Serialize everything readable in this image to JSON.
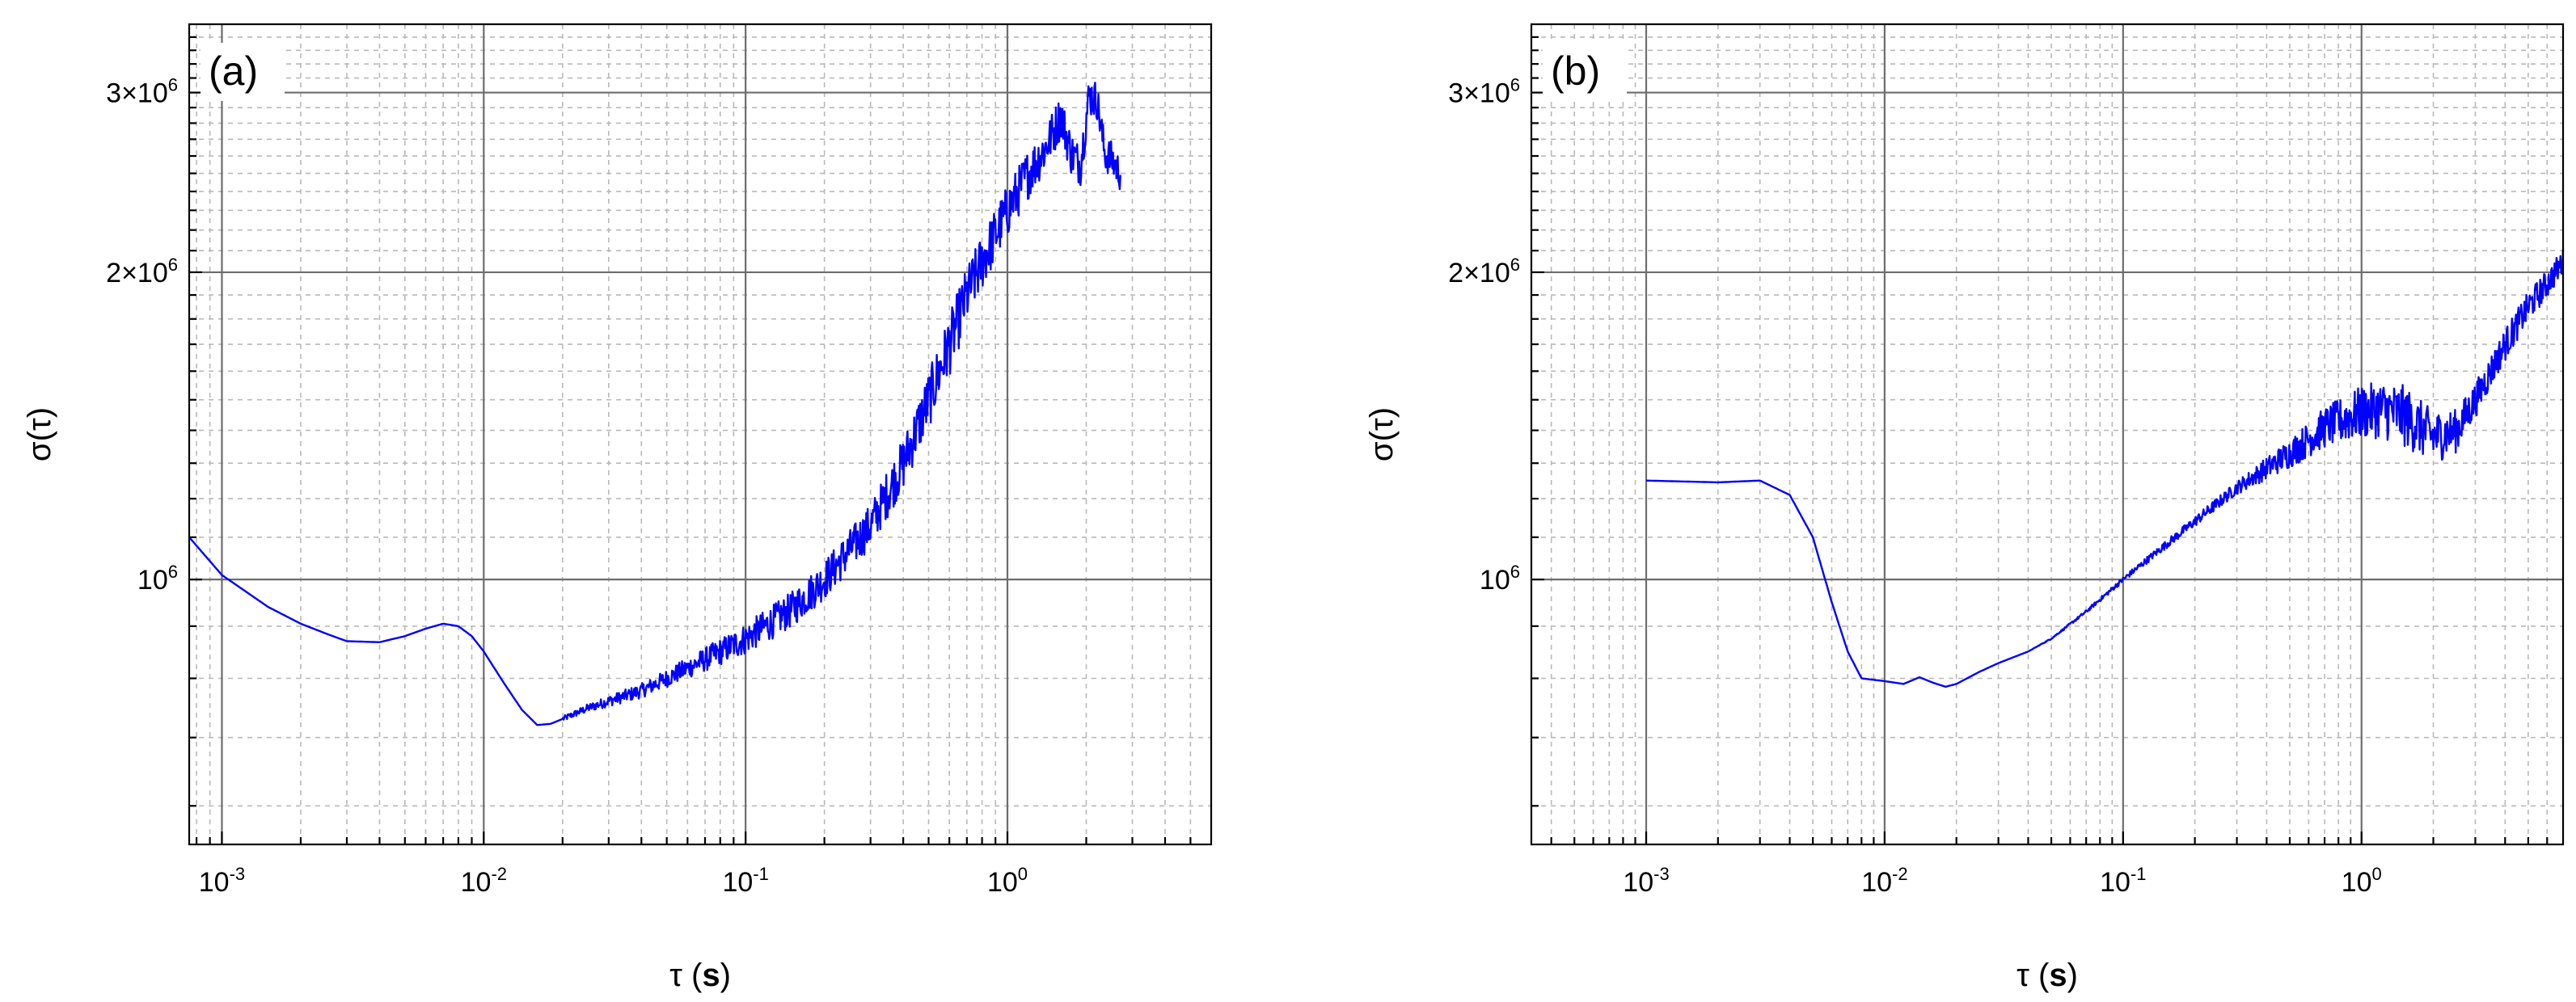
{
  "chart_data": [
    {
      "type": "line",
      "panel_label": "(a)",
      "xlabel_symbol": "τ",
      "xlabel_unit": "s",
      "ylabel": "σ(τ)",
      "x_scale": "log",
      "y_scale": "log",
      "xlim": [
        0.00075,
        6
      ],
      "ylim": [
        550000,
        3500000
      ],
      "x_ticks": [
        {
          "value": 0.001,
          "base": "10",
          "exp": "-3"
        },
        {
          "value": 0.01,
          "base": "10",
          "exp": "-2"
        },
        {
          "value": 0.1,
          "base": "10",
          "exp": "-1"
        },
        {
          "value": 1,
          "base": "10",
          "exp": "0"
        }
      ],
      "y_ticks": [
        {
          "value": 1000000,
          "base": "10",
          "exp": "6"
        },
        {
          "value": 2000000,
          "base": "2×10",
          "exp": "6"
        },
        {
          "value": 3000000,
          "base": "3×10",
          "exp": "6"
        }
      ],
      "grid": true,
      "series": [
        {
          "color": "#0000ff",
          "noise": [
            [
              0.02,
              0.006
            ],
            [
              0.05,
              0.02
            ],
            [
              0.1,
              0.035
            ],
            [
              0.3,
              0.05
            ],
            [
              0.6,
              0.07
            ],
            [
              1.0,
              0.06
            ],
            [
              2.8,
              0.04
            ]
          ],
          "points": [
            [
              0.00075,
              1100000
            ],
            [
              0.001,
              1010000
            ],
            [
              0.0015,
              940000
            ],
            [
              0.002,
              905000
            ],
            [
              0.0025,
              885000
            ],
            [
              0.003,
              870000
            ],
            [
              0.004,
              868000
            ],
            [
              0.005,
              880000
            ],
            [
              0.006,
              895000
            ],
            [
              0.007,
              905000
            ],
            [
              0.008,
              900000
            ],
            [
              0.009,
              880000
            ],
            [
              0.01,
              850000
            ],
            [
              0.012,
              790000
            ],
            [
              0.014,
              745000
            ],
            [
              0.016,
              720000
            ],
            [
              0.018,
              722000
            ],
            [
              0.02,
              730000
            ],
            [
              0.025,
              748000
            ],
            [
              0.03,
              760000
            ],
            [
              0.04,
              778000
            ],
            [
              0.05,
              800000
            ],
            [
              0.07,
              835000
            ],
            [
              0.1,
              875000
            ],
            [
              0.15,
              935000
            ],
            [
              0.2,
              1000000
            ],
            [
              0.3,
              1130000
            ],
            [
              0.4,
              1300000
            ],
            [
              0.5,
              1500000
            ],
            [
              0.6,
              1700000
            ],
            [
              0.7,
              1900000
            ],
            [
              0.8,
              2050000
            ],
            [
              1.0,
              2300000
            ],
            [
              1.2,
              2500000
            ],
            [
              1.4,
              2650000
            ],
            [
              1.5,
              2750000
            ],
            [
              1.6,
              2850000
            ],
            [
              1.75,
              2620000
            ],
            [
              1.9,
              2550000
            ],
            [
              2.05,
              2980000
            ],
            [
              2.2,
              2950000
            ],
            [
              2.35,
              2620000
            ],
            [
              2.5,
              2580000
            ],
            [
              2.7,
              2500000
            ]
          ]
        }
      ]
    },
    {
      "type": "line",
      "panel_label": "(b)",
      "xlabel_symbol": "τ",
      "xlabel_unit": "s",
      "ylabel": "σ(τ)",
      "x_scale": "log",
      "y_scale": "log",
      "xlim": [
        0.00033,
        7
      ],
      "ylim": [
        550000,
        3500000
      ],
      "x_ticks": [
        {
          "value": 0.001,
          "base": "10",
          "exp": "-3"
        },
        {
          "value": 0.01,
          "base": "10",
          "exp": "-2"
        },
        {
          "value": 0.1,
          "base": "10",
          "exp": "-1"
        },
        {
          "value": 1,
          "base": "10",
          "exp": "0"
        }
      ],
      "y_ticks": [
        {
          "value": 1000000,
          "base": "10",
          "exp": "6"
        },
        {
          "value": 2000000,
          "base": "2×10",
          "exp": "6"
        },
        {
          "value": 3000000,
          "base": "3×10",
          "exp": "6"
        }
      ],
      "grid": true,
      "series": [
        {
          "color": "#0000ff",
          "noise": [
            [
              0.04,
              0
            ],
            [
              0.1,
              0.006
            ],
            [
              0.3,
              0.015
            ],
            [
              0.6,
              0.04
            ],
            [
              1.0,
              0.06
            ],
            [
              1.5,
              0.07
            ],
            [
              2.0,
              0.06
            ],
            [
              3.0,
              0.04
            ],
            [
              7.0,
              0.03
            ]
          ],
          "points": [
            [
              0.001,
              1250000
            ],
            [
              0.002,
              1245000
            ],
            [
              0.003,
              1250000
            ],
            [
              0.004,
              1210000
            ],
            [
              0.005,
              1100000
            ],
            [
              0.006,
              950000
            ],
            [
              0.007,
              850000
            ],
            [
              0.008,
              800000
            ],
            [
              0.01,
              795000
            ],
            [
              0.012,
              790000
            ],
            [
              0.014,
              802000
            ],
            [
              0.016,
              792000
            ],
            [
              0.018,
              785000
            ],
            [
              0.02,
              790000
            ],
            [
              0.025,
              812000
            ],
            [
              0.03,
              828000
            ],
            [
              0.04,
              850000
            ],
            [
              0.05,
              875000
            ],
            [
              0.07,
              930000
            ],
            [
              0.1,
              1000000
            ],
            [
              0.15,
              1080000
            ],
            [
              0.2,
              1140000
            ],
            [
              0.3,
              1230000
            ],
            [
              0.5,
              1330000
            ],
            [
              0.7,
              1410000
            ],
            [
              1.0,
              1460000
            ],
            [
              1.2,
              1470000
            ],
            [
              1.5,
              1450000
            ],
            [
              2.0,
              1380000
            ],
            [
              2.5,
              1400000
            ],
            [
              3.0,
              1500000
            ],
            [
              4.0,
              1700000
            ],
            [
              5.0,
              1850000
            ],
            [
              6.0,
              1950000
            ],
            [
              7.0,
              2050000
            ]
          ]
        }
      ]
    }
  ]
}
